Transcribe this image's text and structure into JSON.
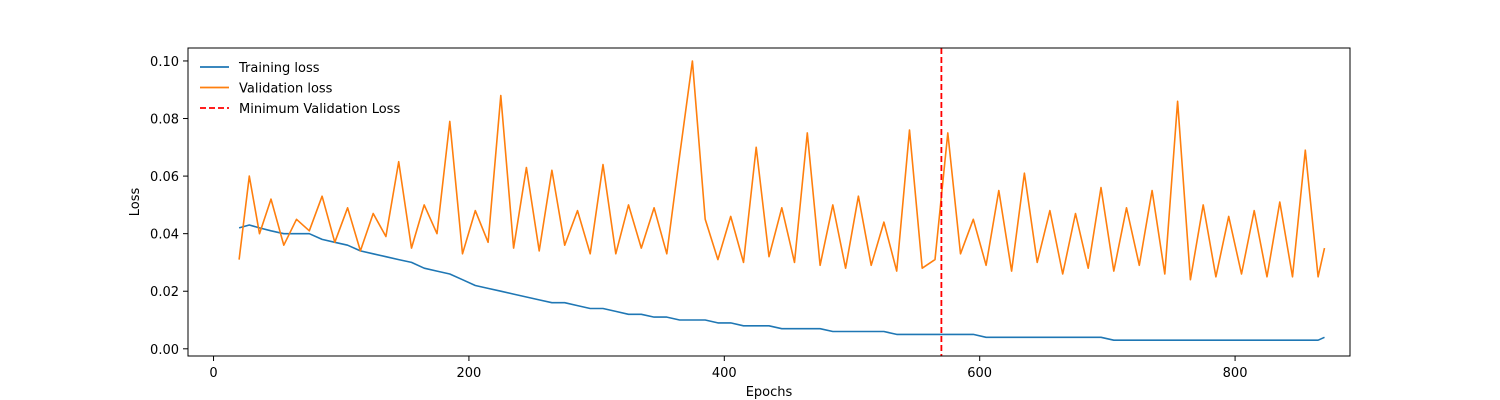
{
  "chart_data": {
    "type": "line",
    "title": "",
    "xlabel": "Epochs",
    "ylabel": "Loss",
    "xlim": [
      -20,
      890
    ],
    "ylim": [
      -0.0025,
      0.1045
    ],
    "xticks": [
      0,
      200,
      400,
      600,
      800
    ],
    "xtick_labels": [
      "0",
      "200",
      "400",
      "600",
      "800"
    ],
    "yticks": [
      0.0,
      0.02,
      0.04,
      0.06,
      0.08,
      0.1
    ],
    "ytick_labels": [
      "0.00",
      "0.02",
      "0.04",
      "0.06",
      "0.08",
      "0.10"
    ],
    "grid": false,
    "legend_position": "top-left",
    "x_start": 20,
    "x_end": 870,
    "series": [
      {
        "name": "Training loss",
        "color": "#1f77b4",
        "style": "solid",
        "x": [
          20,
          28,
          36,
          45,
          55,
          65,
          75,
          85,
          95,
          105,
          115,
          125,
          135,
          145,
          155,
          165,
          175,
          185,
          195,
          205,
          215,
          225,
          235,
          245,
          255,
          265,
          275,
          285,
          295,
          305,
          315,
          325,
          335,
          345,
          355,
          365,
          375,
          385,
          395,
          405,
          415,
          425,
          435,
          445,
          455,
          465,
          475,
          485,
          495,
          505,
          515,
          525,
          535,
          545,
          555,
          565,
          575,
          585,
          595,
          605,
          615,
          625,
          635,
          645,
          655,
          665,
          675,
          685,
          695,
          705,
          715,
          725,
          735,
          745,
          755,
          765,
          775,
          785,
          795,
          805,
          815,
          825,
          835,
          845,
          855,
          865,
          870
        ],
        "y": [
          0.042,
          0.043,
          0.042,
          0.041,
          0.04,
          0.04,
          0.04,
          0.038,
          0.037,
          0.036,
          0.034,
          0.033,
          0.032,
          0.031,
          0.03,
          0.028,
          0.027,
          0.026,
          0.024,
          0.022,
          0.021,
          0.02,
          0.019,
          0.018,
          0.017,
          0.016,
          0.016,
          0.015,
          0.014,
          0.014,
          0.013,
          0.012,
          0.012,
          0.011,
          0.011,
          0.01,
          0.01,
          0.01,
          0.009,
          0.009,
          0.008,
          0.008,
          0.008,
          0.007,
          0.007,
          0.007,
          0.007,
          0.006,
          0.006,
          0.006,
          0.006,
          0.006,
          0.005,
          0.005,
          0.005,
          0.005,
          0.005,
          0.005,
          0.005,
          0.004,
          0.004,
          0.004,
          0.004,
          0.004,
          0.004,
          0.004,
          0.004,
          0.004,
          0.004,
          0.003,
          0.003,
          0.003,
          0.003,
          0.003,
          0.003,
          0.003,
          0.003,
          0.003,
          0.003,
          0.003,
          0.003,
          0.003,
          0.003,
          0.003,
          0.003,
          0.003,
          0.004
        ]
      },
      {
        "name": "Validation loss",
        "color": "#ff7f0e",
        "style": "solid",
        "x": [
          20,
          28,
          36,
          45,
          55,
          65,
          75,
          85,
          95,
          105,
          115,
          125,
          135,
          145,
          155,
          165,
          175,
          185,
          195,
          205,
          215,
          225,
          235,
          245,
          255,
          265,
          275,
          285,
          295,
          305,
          315,
          325,
          335,
          345,
          355,
          365,
          375,
          385,
          395,
          405,
          415,
          425,
          435,
          445,
          455,
          465,
          475,
          485,
          495,
          505,
          515,
          525,
          535,
          545,
          555,
          565,
          575,
          585,
          595,
          605,
          615,
          625,
          635,
          645,
          655,
          665,
          675,
          685,
          695,
          705,
          715,
          725,
          735,
          745,
          755,
          765,
          775,
          785,
          795,
          805,
          815,
          825,
          835,
          845,
          855,
          865,
          870
        ],
        "y": [
          0.031,
          0.06,
          0.04,
          0.052,
          0.036,
          0.045,
          0.041,
          0.053,
          0.037,
          0.049,
          0.034,
          0.047,
          0.039,
          0.065,
          0.035,
          0.05,
          0.04,
          0.079,
          0.033,
          0.048,
          0.037,
          0.088,
          0.035,
          0.063,
          0.034,
          0.062,
          0.036,
          0.048,
          0.033,
          0.064,
          0.033,
          0.05,
          0.035,
          0.049,
          0.033,
          0.067,
          0.1,
          0.045,
          0.031,
          0.046,
          0.03,
          0.07,
          0.032,
          0.049,
          0.03,
          0.075,
          0.029,
          0.05,
          0.028,
          0.053,
          0.029,
          0.044,
          0.027,
          0.076,
          0.028,
          0.031,
          0.075,
          0.033,
          0.045,
          0.029,
          0.055,
          0.027,
          0.061,
          0.03,
          0.048,
          0.026,
          0.047,
          0.028,
          0.056,
          0.027,
          0.049,
          0.029,
          0.055,
          0.026,
          0.086,
          0.024,
          0.05,
          0.025,
          0.046,
          0.026,
          0.048,
          0.025,
          0.051,
          0.025,
          0.069,
          0.025,
          0.035
        ]
      },
      {
        "name": "Minimum Validation Loss",
        "color": "#ff0000",
        "style": "dashed",
        "vline_x": 570
      }
    ]
  }
}
